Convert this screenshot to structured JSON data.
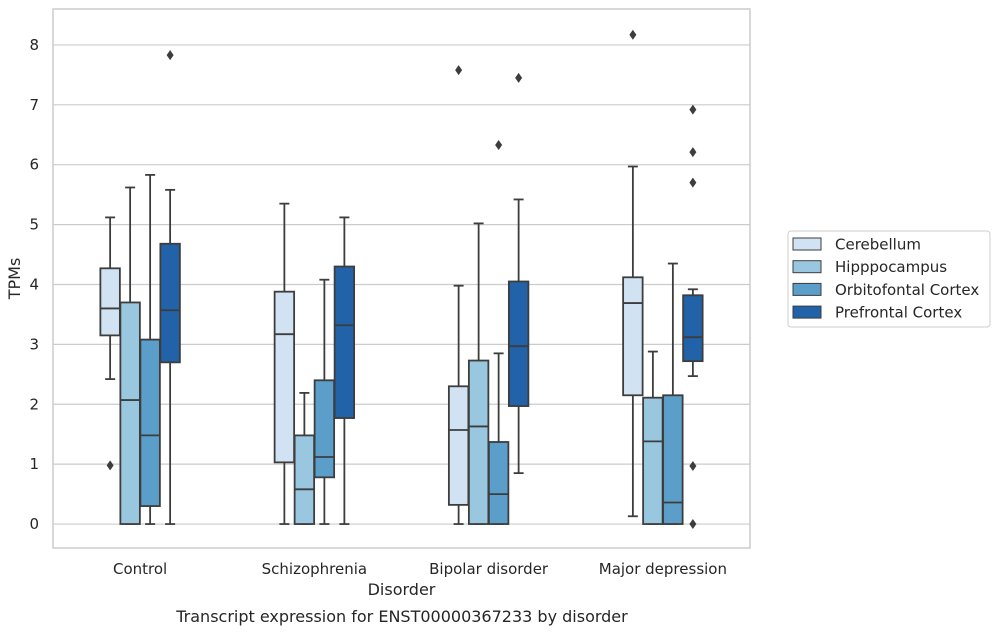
{
  "caption": "Transcript expression for ENST00000367233 by disorder",
  "chart_data": {
    "type": "boxplot",
    "title": "",
    "xlabel": "Disorder",
    "ylabel": "TPMs",
    "ylim": [
      -0.4,
      8.6
    ],
    "yticks": [
      "0",
      "1",
      "2",
      "3",
      "4",
      "5",
      "6",
      "7",
      "8"
    ],
    "categories": [
      "Control",
      "Schizophrenia",
      "Bipolar disorder",
      "Major depression"
    ],
    "grid": "horizontal",
    "legend_position": "right",
    "colors": [
      "#d1e2f2",
      "#9ac7e0",
      "#5a9ec9",
      "#2262a8"
    ],
    "edge_color": "#3d3d3d",
    "series": [
      {
        "name": "Cerebellum",
        "boxes": [
          {
            "whisker_low": 2.42,
            "q1": 3.15,
            "median": 3.6,
            "q3": 4.27,
            "whisker_high": 5.12,
            "outliers": [
              0.98
            ]
          },
          {
            "whisker_low": 0.0,
            "q1": 1.03,
            "median": 3.17,
            "q3": 3.88,
            "whisker_high": 5.35,
            "outliers": []
          },
          {
            "whisker_low": 0.0,
            "q1": 0.32,
            "median": 1.57,
            "q3": 2.3,
            "whisker_high": 3.98,
            "outliers": [
              7.58
            ]
          },
          {
            "whisker_low": 0.13,
            "q1": 2.15,
            "median": 3.69,
            "q3": 4.12,
            "whisker_high": 5.97,
            "outliers": [
              8.17
            ]
          }
        ]
      },
      {
        "name": "Hipppocampus",
        "boxes": [
          {
            "whisker_low": 0.0,
            "q1": 0.0,
            "median": 2.07,
            "q3": 3.7,
            "whisker_high": 5.62,
            "outliers": []
          },
          {
            "whisker_low": 0.0,
            "q1": 0.0,
            "median": 0.58,
            "q3": 1.48,
            "whisker_high": 2.19,
            "outliers": []
          },
          {
            "whisker_low": 0.0,
            "q1": 0.0,
            "median": 1.63,
            "q3": 2.73,
            "whisker_high": 5.02,
            "outliers": []
          },
          {
            "whisker_low": 0.0,
            "q1": 0.0,
            "median": 1.38,
            "q3": 2.11,
            "whisker_high": 2.88,
            "outliers": []
          }
        ]
      },
      {
        "name": "Orbitofontal Cortex",
        "boxes": [
          {
            "whisker_low": 0.0,
            "q1": 0.3,
            "median": 1.48,
            "q3": 3.08,
            "whisker_high": 5.83,
            "outliers": []
          },
          {
            "whisker_low": 0.0,
            "q1": 0.78,
            "median": 1.12,
            "q3": 2.4,
            "whisker_high": 4.08,
            "outliers": []
          },
          {
            "whisker_low": 0.0,
            "q1": 0.0,
            "median": 0.5,
            "q3": 1.37,
            "whisker_high": 2.85,
            "outliers": [
              6.33
            ]
          },
          {
            "whisker_low": 0.0,
            "q1": 0.0,
            "median": 0.36,
            "q3": 2.15,
            "whisker_high": 4.35,
            "outliers": []
          }
        ]
      },
      {
        "name": "Prefrontal Cortex",
        "boxes": [
          {
            "whisker_low": 0.0,
            "q1": 2.7,
            "median": 3.57,
            "q3": 4.68,
            "whisker_high": 5.58,
            "outliers": [
              7.83
            ]
          },
          {
            "whisker_low": 0.0,
            "q1": 1.77,
            "median": 3.32,
            "q3": 4.3,
            "whisker_high": 5.12,
            "outliers": []
          },
          {
            "whisker_low": 0.85,
            "q1": 1.97,
            "median": 2.97,
            "q3": 4.05,
            "whisker_high": 5.42,
            "outliers": [
              7.45
            ]
          },
          {
            "whisker_low": 2.47,
            "q1": 2.72,
            "median": 3.12,
            "q3": 3.82,
            "whisker_high": 3.92,
            "outliers": [
              0.97,
              0.0,
              5.7,
              6.21,
              6.92
            ]
          }
        ]
      }
    ]
  }
}
